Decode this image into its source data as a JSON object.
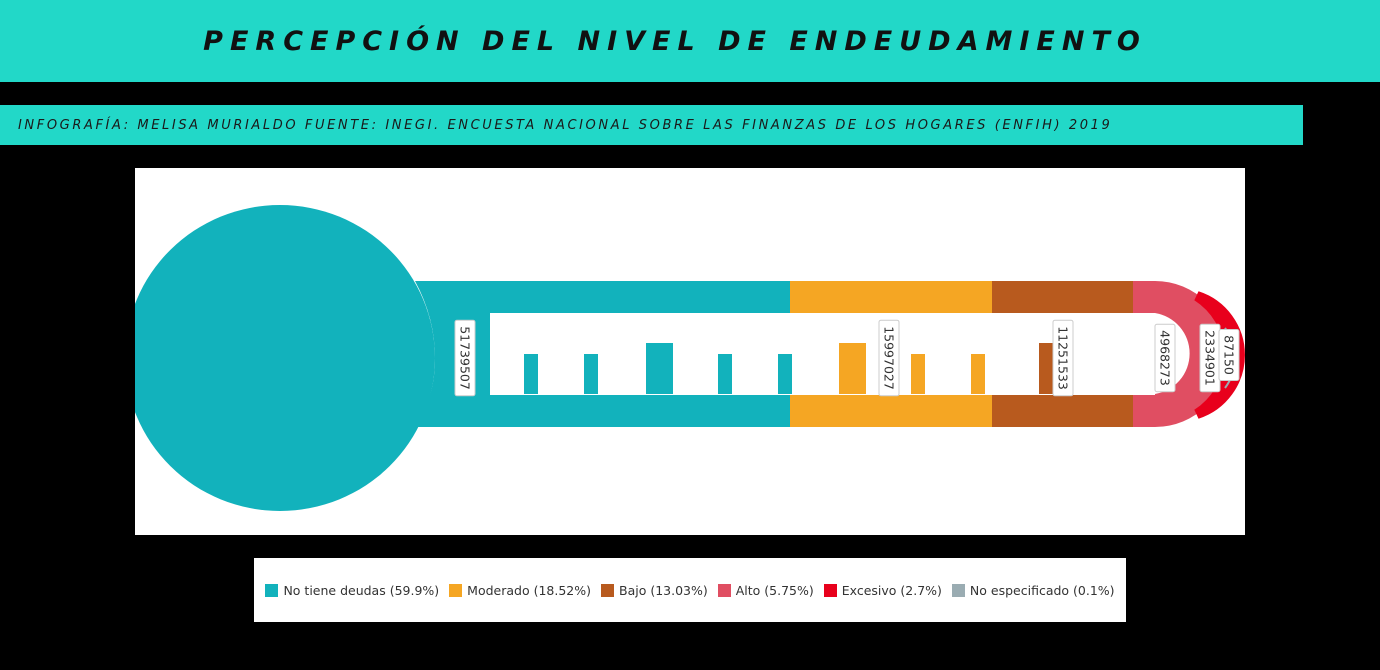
{
  "header": {
    "title": "PERCEPCIÓN DEL NIVEL DE ENDEUDAMIENTO",
    "subtitle": "INFOGRAFÍA: MELISA MURIALDO FUENTE: INEGI. ENCUESTA NACIONAL SOBRE LAS FINANZAS DE LOS HOGARES (ENFIH) 2019"
  },
  "colors": {
    "band": "#22d8c8",
    "background": "#000000"
  },
  "chart_data": {
    "type": "thermometer",
    "unit_label": "",
    "series": [
      {
        "name": "No tiene deudas",
        "value": 51739507,
        "value_label": "51739507",
        "legend": "No tiene deudas (59.9%)",
        "color": "#12b2bc"
      },
      {
        "name": "Moderado",
        "value": 15997027,
        "value_label": "15997027",
        "legend": "Moderado (18.52%)",
        "color": "#f5a623"
      },
      {
        "name": "Bajo",
        "value": 11251533,
        "value_label": "11251533",
        "legend": "Bajo (13.03%)",
        "color": "#b85a1e"
      },
      {
        "name": "Alto",
        "value": 4968273,
        "value_label": "4968273",
        "legend": "Alto (5.75%)",
        "color": "#e04e62"
      },
      {
        "name": "Excesivo",
        "value": 2334901,
        "value_label": "2334901",
        "legend": "Excesivo (2.7%)",
        "color": "#e8001c"
      },
      {
        "name": "No especificado",
        "value": 87150,
        "value_label": "87150",
        "legend": "No especificado (0.1%)",
        "color": "#9aacb2"
      }
    ]
  }
}
